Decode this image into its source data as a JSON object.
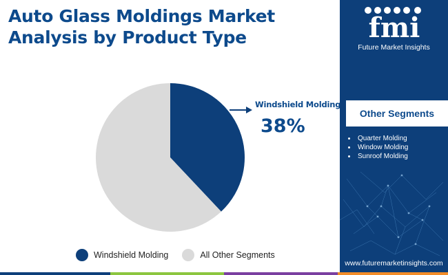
{
  "title": "Auto Glass Moldings Market Analysis by Product Type",
  "chart_data": {
    "type": "pie",
    "slices": [
      {
        "label": "Windshield Molding",
        "value": 38,
        "color": "#0d3f7a"
      },
      {
        "label": "All Other Segments",
        "value": 62,
        "color": "#dadada"
      }
    ]
  },
  "callout": {
    "label": "Windshield Molding",
    "value": "38%"
  },
  "legend": [
    {
      "label": "Windshield Molding",
      "color": "#0d3f7a"
    },
    {
      "label": "All Other Segments",
      "color": "#dadada"
    }
  ],
  "sidebar": {
    "brand": "Future Market Insights",
    "other_segments_title": "Other Segments",
    "other_segments": [
      "Quarter Molding",
      "Window Molding",
      "Sunroof Molding"
    ],
    "url": "www.futuremarketinsights.com"
  },
  "colors": {
    "brand_blue": "#0d3f7a",
    "accent_green": "#8cc63f",
    "accent_purple": "#7a3fa0",
    "accent_orange": "#f28c28"
  }
}
